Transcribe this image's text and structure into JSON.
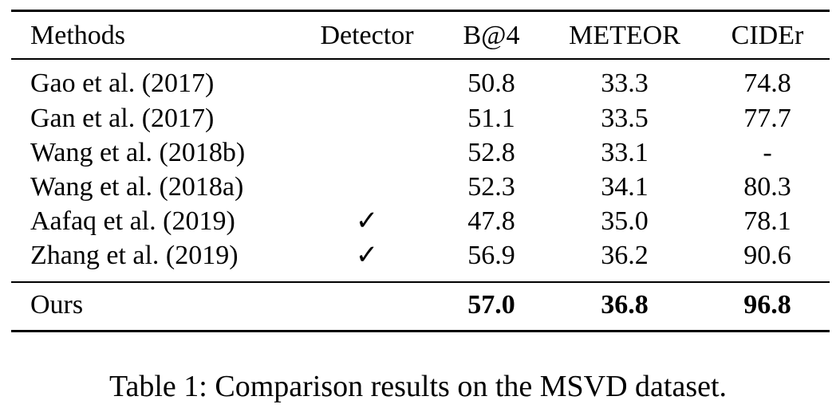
{
  "table": {
    "columns": [
      "Methods",
      "Detector",
      "B@4",
      "METEOR",
      "CIDEr"
    ],
    "rows": [
      {
        "method": "Gao et al. (2017)",
        "detector": "",
        "b4": "50.8",
        "meteor": "33.3",
        "cider": "74.8"
      },
      {
        "method": "Gan et al. (2017)",
        "detector": "",
        "b4": "51.1",
        "meteor": "33.5",
        "cider": "77.7"
      },
      {
        "method": "Wang et al. (2018b)",
        "detector": "",
        "b4": "52.8",
        "meteor": "33.1",
        "cider": "-"
      },
      {
        "method": "Wang et al. (2018a)",
        "detector": "",
        "b4": "52.3",
        "meteor": "34.1",
        "cider": "80.3"
      },
      {
        "method": "Aafaq et al. (2019)",
        "detector": "✓",
        "b4": "47.8",
        "meteor": "35.0",
        "cider": "78.1"
      },
      {
        "method": "Zhang et al. (2019)",
        "detector": "✓",
        "b4": "56.9",
        "meteor": "36.2",
        "cider": "90.6"
      }
    ],
    "ours": {
      "method": "Ours",
      "detector": "",
      "b4": "57.0",
      "meteor": "36.8",
      "cider": "96.8"
    }
  },
  "caption": "Table 1: Comparison results on the MSVD dataset."
}
